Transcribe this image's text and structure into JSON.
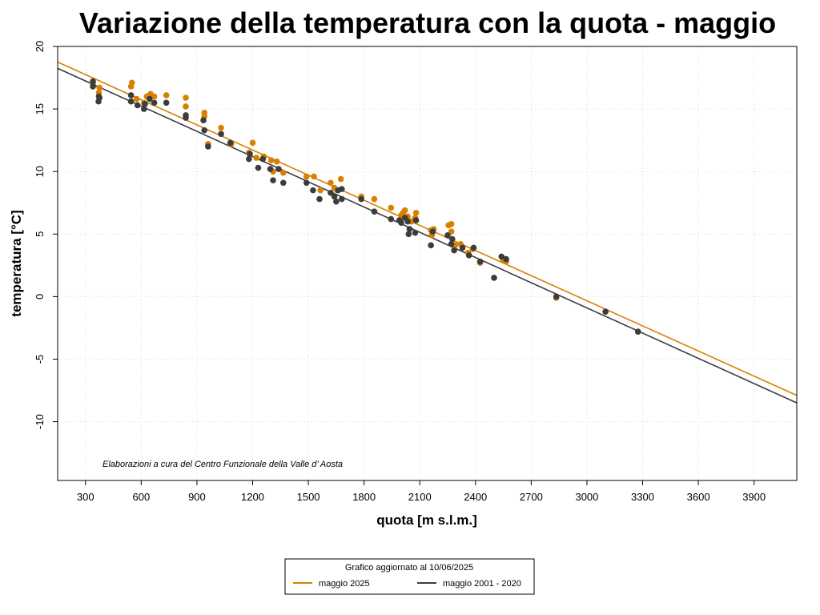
{
  "chart_data": {
    "type": "scatter",
    "title": "Variazione della temperatura con la quota -  maggio",
    "xlabel": "quota [m s.l.m.]",
    "ylabel": "temperatura [°C]",
    "xlim": [
      150,
      4130
    ],
    "ylim": [
      -14.7,
      20
    ],
    "x_ticks": [
      300,
      600,
      900,
      1200,
      1500,
      1800,
      2100,
      2400,
      2700,
      3000,
      3300,
      3600,
      3900
    ],
    "y_ticks": [
      -10,
      -5,
      0,
      5,
      10,
      15,
      20
    ],
    "grid": true,
    "annotation": "Elaborazioni a cura del Centro Funzionale della Valle d’ Aosta",
    "legend": {
      "placement": "bottom",
      "title": "Grafico aggiornato al 10/06/2025"
    },
    "series": [
      {
        "name": "maggio 2025",
        "color": "#d98000",
        "trend": {
          "x0": 150,
          "y0": 18.75,
          "x1": 4130,
          "y1": -7.9
        },
        "points": [
          [
            340,
            17.0
          ],
          [
            375,
            16.7
          ],
          [
            372,
            16.3
          ],
          [
            545,
            16.8
          ],
          [
            550,
            17.1
          ],
          [
            575,
            15.8
          ],
          [
            615,
            15.5
          ],
          [
            630,
            16.0
          ],
          [
            650,
            16.2
          ],
          [
            670,
            16.0
          ],
          [
            735,
            16.1
          ],
          [
            840,
            15.9
          ],
          [
            840,
            15.2
          ],
          [
            940,
            14.7
          ],
          [
            940,
            14.4
          ],
          [
            960,
            12.2
          ],
          [
            1030,
            13.5
          ],
          [
            1085,
            12.2
          ],
          [
            1180,
            11.5
          ],
          [
            1200,
            12.3
          ],
          [
            1220,
            11.1
          ],
          [
            1260,
            11.2
          ],
          [
            1300,
            10.9
          ],
          [
            1330,
            10.8
          ],
          [
            1310,
            10.0
          ],
          [
            1365,
            9.9
          ],
          [
            1490,
            9.6
          ],
          [
            1530,
            9.6
          ],
          [
            1565,
            8.5
          ],
          [
            1620,
            9.1
          ],
          [
            1640,
            8.7
          ],
          [
            1655,
            8.5
          ],
          [
            1675,
            9.4
          ],
          [
            1785,
            8.0
          ],
          [
            1855,
            7.8
          ],
          [
            1945,
            7.1
          ],
          [
            2000,
            6.5
          ],
          [
            2010,
            6.7
          ],
          [
            2020,
            6.9
          ],
          [
            2035,
            6.4
          ],
          [
            2055,
            6.0
          ],
          [
            2075,
            6.3
          ],
          [
            2080,
            6.7
          ],
          [
            2160,
            5.3
          ],
          [
            2165,
            4.9
          ],
          [
            2175,
            5.4
          ],
          [
            2255,
            5.7
          ],
          [
            2270,
            5.8
          ],
          [
            2270,
            5.2
          ],
          [
            2290,
            4.1
          ],
          [
            2320,
            4.2
          ],
          [
            2360,
            3.5
          ],
          [
            2385,
            3.8
          ],
          [
            2425,
            2.7
          ],
          [
            2550,
            2.9
          ],
          [
            2565,
            2.8
          ],
          [
            2835,
            -0.1
          ],
          [
            3100,
            -1.2
          ],
          [
            3275,
            -2.8
          ]
        ]
      },
      {
        "name": "maggio 2001 - 2020",
        "color": "#3c3c3c",
        "trend": {
          "x0": 150,
          "y0": 18.25,
          "x1": 4130,
          "y1": -8.5
        },
        "points": [
          [
            340,
            16.8
          ],
          [
            340,
            17.2
          ],
          [
            370,
            15.6
          ],
          [
            372,
            16.0
          ],
          [
            375,
            15.9
          ],
          [
            545,
            15.6
          ],
          [
            545,
            16.1
          ],
          [
            580,
            15.3
          ],
          [
            615,
            15.0
          ],
          [
            620,
            15.4
          ],
          [
            645,
            15.8
          ],
          [
            670,
            15.5
          ],
          [
            735,
            15.5
          ],
          [
            840,
            14.5
          ],
          [
            840,
            14.3
          ],
          [
            935,
            14.1
          ],
          [
            940,
            13.3
          ],
          [
            960,
            12.0
          ],
          [
            1030,
            13.0
          ],
          [
            1080,
            12.3
          ],
          [
            1180,
            11.0
          ],
          [
            1185,
            11.4
          ],
          [
            1230,
            10.3
          ],
          [
            1255,
            11.0
          ],
          [
            1295,
            10.2
          ],
          [
            1310,
            9.3
          ],
          [
            1340,
            10.2
          ],
          [
            1365,
            9.1
          ],
          [
            1490,
            9.1
          ],
          [
            1525,
            8.5
          ],
          [
            1560,
            7.8
          ],
          [
            1620,
            8.3
          ],
          [
            1640,
            8.0
          ],
          [
            1650,
            7.6
          ],
          [
            1660,
            8.5
          ],
          [
            1680,
            7.8
          ],
          [
            1680,
            8.6
          ],
          [
            1785,
            7.8
          ],
          [
            1855,
            6.8
          ],
          [
            1945,
            6.2
          ],
          [
            1990,
            6.1
          ],
          [
            2000,
            5.9
          ],
          [
            2020,
            6.3
          ],
          [
            2035,
            6.0
          ],
          [
            2040,
            5.0
          ],
          [
            2045,
            5.4
          ],
          [
            2075,
            5.1
          ],
          [
            2080,
            6.1
          ],
          [
            2160,
            4.1
          ],
          [
            2170,
            5.2
          ],
          [
            2250,
            4.9
          ],
          [
            2270,
            4.2
          ],
          [
            2275,
            4.6
          ],
          [
            2285,
            3.7
          ],
          [
            2330,
            3.9
          ],
          [
            2365,
            3.3
          ],
          [
            2390,
            3.9
          ],
          [
            2425,
            2.8
          ],
          [
            2500,
            1.5
          ],
          [
            2540,
            3.2
          ],
          [
            2565,
            3.0
          ],
          [
            2835,
            0.0
          ],
          [
            3100,
            -1.2
          ],
          [
            3275,
            -2.8
          ]
        ]
      }
    ]
  }
}
